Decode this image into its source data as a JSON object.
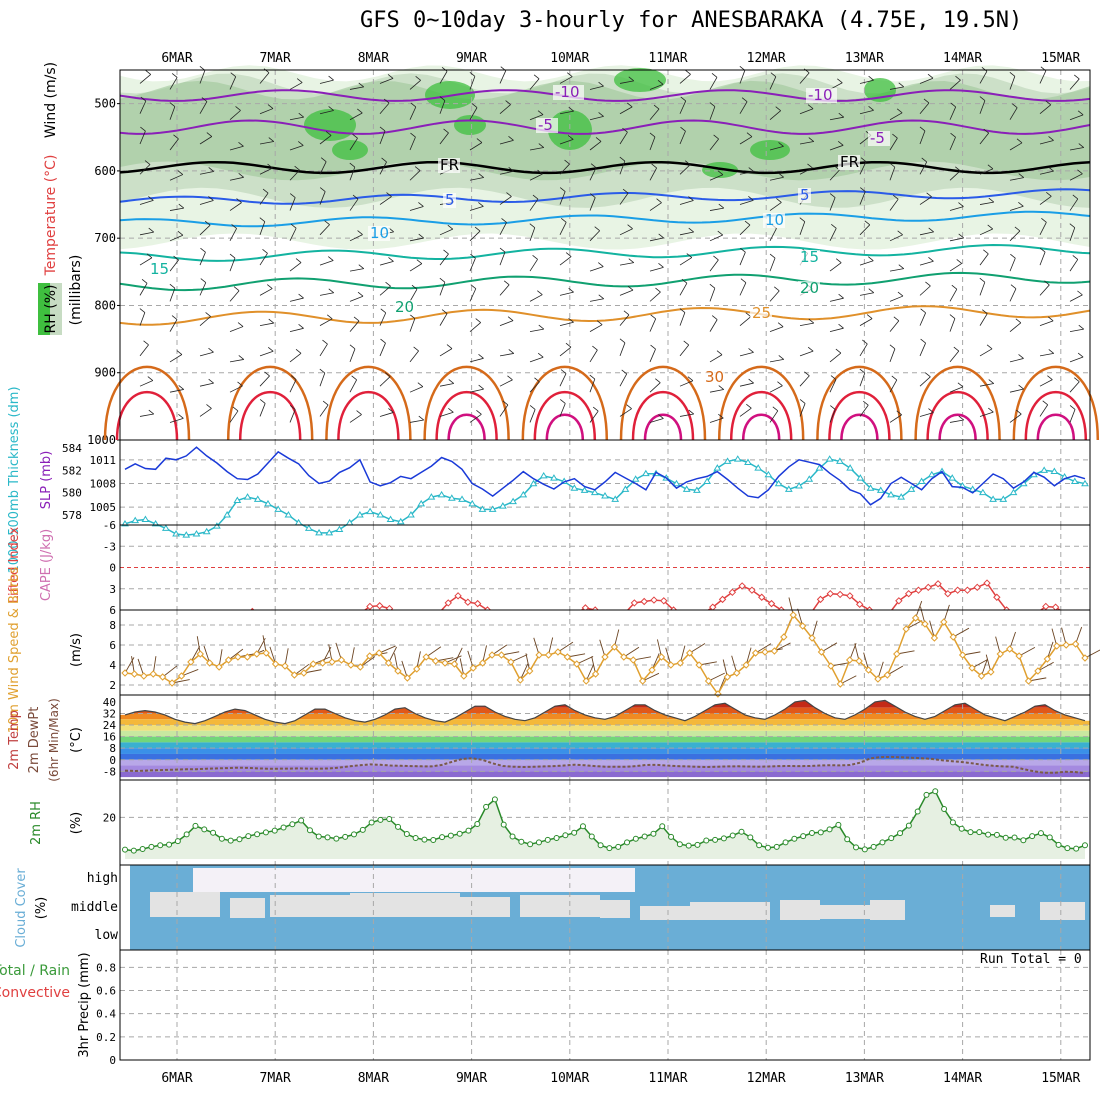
{
  "title": "GFS 0~10day 3-hourly for ANESBARAKA (4.75E, 19.5N)",
  "dates": [
    "6MAR",
    "7MAR",
    "8MAR",
    "9MAR",
    "10MAR",
    "11MAR",
    "12MAR",
    "13MAR",
    "14MAR",
    "15MAR"
  ],
  "colors": {
    "grid": "#a8a8a8",
    "rh_green_light": "#e8f4e4",
    "rh_green_mid": "#c7dcc3",
    "rh_green_dark": "#9fc79a",
    "rh_green_bright": "#3fbf3f",
    "temp_purple": "#8a1fb8",
    "temp_blue": "#2a5be8",
    "temp_skyblue": "#1a9ee6",
    "temp_teal": "#13b3a0",
    "temp_green": "#10a070",
    "temp_orange": "#e0902a",
    "temp_darkorange": "#d56a1a",
    "temp_red": "#e0203a",
    "temp_magenta": "#d0107f",
    "slp_blue": "#1a3ad8",
    "thick_cyan": "#2ab8c8",
    "li_red": "#e04040",
    "wind_orange": "#e0a030",
    "barb_brown": "#6b4422",
    "rh2_green": "#2a8a2a",
    "cloud_blue": "#6aaed6",
    "cloud_white": "#f4f1f7",
    "cloud_gray": "#e3e3e3",
    "dewpt": "#7a5a4a"
  },
  "panels": {
    "upper": {
      "label_wind": "Wind (m/s)",
      "label_temp": "Temperature (°C)",
      "label_rh": "RH (%)",
      "label_unit": "(millibars)",
      "yticks": [
        "500",
        "600",
        "700",
        "800",
        "900",
        "1000"
      ],
      "temp_labels": [
        {
          "text": "-10",
          "color": "temp_purple"
        },
        {
          "text": "-10",
          "color": "temp_purple"
        },
        {
          "text": "-5",
          "color": "temp_purple"
        },
        {
          "text": "-5",
          "color": "temp_purple"
        },
        {
          "text": "FR",
          "color": "black"
        },
        {
          "text": "FR",
          "color": "black"
        },
        {
          "text": "5",
          "color": "temp_blue"
        },
        {
          "text": "5",
          "color": "temp_blue"
        },
        {
          "text": "10",
          "color": "temp_skyblue"
        },
        {
          "text": "10",
          "color": "temp_skyblue"
        },
        {
          "text": "15",
          "color": "temp_teal"
        },
        {
          "text": "15",
          "color": "temp_teal"
        },
        {
          "text": "20",
          "color": "temp_green"
        },
        {
          "text": "20",
          "color": "temp_green"
        },
        {
          "text": "25",
          "color": "temp_orange"
        },
        {
          "text": "30",
          "color": "temp_darkorange"
        }
      ]
    },
    "slp": {
      "label_thick": "1000-500mb Thickness (dm)",
      "label_slp": "SLP (mb)",
      "thick_ticks": [
        "584",
        "582",
        "580",
        "578"
      ],
      "slp_ticks": [
        "1011",
        "1008",
        "1005"
      ],
      "thickness_dm": [
        577.2,
        577.5,
        577.6,
        577.2,
        576.8,
        576.3,
        576.2,
        576.3,
        576.5,
        577.0,
        578.0,
        579.3,
        579.6,
        579.4,
        579.0,
        578.5,
        578.0,
        577.3,
        576.8,
        576.4,
        576.4,
        576.7,
        577.3,
        578.0,
        578.3,
        578.0,
        577.6,
        577.4,
        578.0,
        579.0,
        579.6,
        579.8,
        579.5,
        579.4,
        579.0,
        578.5,
        578.5,
        578.8,
        579.2,
        579.8,
        580.8,
        581.5,
        581.3,
        581.0,
        580.4,
        580.2,
        580.0,
        579.7,
        579.4,
        580.3,
        581.2,
        581.7,
        581.7,
        581.3,
        580.8,
        580.3,
        580.2,
        581.0,
        582.2,
        582.8,
        583.0,
        582.7,
        582.2,
        581.6,
        580.8,
        580.3,
        580.6,
        581.2,
        582.2,
        583.0,
        582.8,
        582.2,
        581.3,
        580.4,
        580.2,
        579.8,
        579.6,
        580.3,
        581.0,
        581.6,
        581.9,
        581.3,
        580.6,
        580.3,
        580.0,
        579.4,
        579.4,
        580.0,
        580.8,
        581.6,
        582.0,
        581.9,
        581.4,
        581.0,
        580.8
      ],
      "slp_mb": [
        1009.8,
        1010.5,
        1009.9,
        1009.8,
        1011.2,
        1011.0,
        1011.5,
        1012.6,
        1011.5,
        1010.6,
        1009.5,
        1008.6,
        1008.5,
        1009.2,
        1010.6,
        1012.0,
        1011.2,
        1010.5,
        1009.0,
        1008.0,
        1008.3,
        1009.4,
        1010.0,
        1011.0,
        1008.2,
        1007.7,
        1008.1,
        1008.9,
        1008.6,
        1009.4,
        1010.2,
        1011.3,
        1010.8,
        1009.8,
        1008.0,
        1007.3,
        1006.4,
        1007.4,
        1008.4,
        1009.5,
        1008.6,
        1007.9,
        1007.3,
        1008.2,
        1008.6,
        1007.6,
        1007.2,
        1008.2,
        1009.4,
        1008.7,
        1008.0,
        1007.2,
        1009.4,
        1008.7,
        1007.4,
        1008.2,
        1008.6,
        1008.9,
        1009.5,
        1008.5,
        1007.4,
        1006.4,
        1006.2,
        1007.2,
        1008.9,
        1010.1,
        1011.0,
        1010.7,
        1010.4,
        1009.3,
        1008.4,
        1007.2,
        1006.7,
        1005.3,
        1006.1,
        1008.0,
        1008.8,
        1008.0,
        1007.2,
        1008.6,
        1009.5,
        1007.6,
        1007.5,
        1006.8,
        1008.0,
        1009.2,
        1008.6,
        1007.4,
        1008.2,
        1009.4,
        1008.8,
        1007.7,
        1008.6,
        1009.0,
        1008.6
      ]
    },
    "li": {
      "label_li": "Lifted Index",
      "label_cape": "CAPE (J/kg)",
      "yticks": [
        "-6",
        "-3",
        "0",
        "3",
        "6"
      ],
      "lifted_index": [
        6.5,
        6.5,
        6.5,
        6.5,
        6.5,
        6.5,
        6.5,
        6.5,
        6.5,
        6.5,
        6.5,
        6.5,
        6.5,
        6.2,
        6.5,
        6.5,
        6.5,
        6.5,
        6.5,
        6.5,
        6.5,
        6.5,
        6.5,
        6.5,
        6.5,
        5.5,
        5.4,
        5.8,
        6.5,
        6.5,
        6.5,
        6.5,
        6.5,
        5.0,
        4.0,
        4.9,
        5.1,
        6.0,
        6.5,
        6.5,
        6.5,
        6.5,
        6.5,
        6.5,
        6.5,
        6.5,
        6.5,
        5.7,
        6.0,
        6.5,
        6.5,
        6.5,
        5.0,
        4.8,
        4.6,
        4.7,
        6.0,
        6.5,
        6.5,
        6.5,
        5.6,
        4.5,
        3.5,
        2.6,
        3.2,
        4.2,
        5.1,
        6.0,
        6.5,
        6.5,
        6.5,
        4.5,
        3.7,
        3.8,
        4.0,
        5.2,
        6.0,
        6.5,
        6.5,
        4.7,
        3.7,
        3.2,
        2.8,
        2.3,
        3.7,
        3.2,
        3.2,
        2.8,
        2.2,
        4.2,
        6.0,
        6.5,
        6.5,
        6.5,
        5.5,
        5.6,
        6.5,
        6.5,
        6.5
      ]
    },
    "wind": {
      "label": "10m Wind Speed & Barbs",
      "unit": "(m/s)",
      "yticks": [
        "8",
        "6",
        "4",
        "2"
      ],
      "speed": [
        3.2,
        3.1,
        2.9,
        3.1,
        2.8,
        2.2,
        2.9,
        4.3,
        5.1,
        4.2,
        3.8,
        4.5,
        4.8,
        4.8,
        5.1,
        5.2,
        4.1,
        3.9,
        3.0,
        3.2,
        4.1,
        4.2,
        4.3,
        4.5,
        4.0,
        3.8,
        4.9,
        5.2,
        4.2,
        3.4,
        2.7,
        3.6,
        4.8,
        4.4,
        4.2,
        4.1,
        2.9,
        3.7,
        4.2,
        5.0,
        5.0,
        4.3,
        2.5,
        3.4,
        5.0,
        5.0,
        5.3,
        4.8,
        4.1,
        2.4,
        3.1,
        4.8,
        5.8,
        4.8,
        4.5,
        2.4,
        3.5,
        4.8,
        4.0,
        4.2,
        5.2,
        4.0,
        2.4,
        1.1,
        2.8,
        3.2,
        4.0,
        5.2,
        5.3,
        5.4,
        6.8,
        9.0,
        7.9,
        6.7,
        5.3,
        3.9,
        2.1,
        4.5,
        4.4,
        3.5,
        2.6,
        3.0,
        5.1,
        7.6,
        8.7,
        8.1,
        6.7,
        8.3,
        6.8,
        5.0,
        3.7,
        2.9,
        3.3,
        5.1,
        5.6,
        4.9,
        2.4,
        3.4,
        4.6,
        5.9,
        6.0,
        6.1,
        4.7
      ]
    },
    "temp": {
      "label1": "2m Temp",
      "label2": "2m DewPt",
      "label3": "(6hr Min/Max)",
      "unit": "(°C)",
      "yticks": [
        "40",
        "32",
        "24",
        "16",
        "8",
        "0",
        "-8"
      ],
      "temperature": [
        31,
        33,
        34,
        33,
        31,
        28,
        26,
        25,
        27,
        30,
        33,
        35,
        34,
        31,
        28,
        26,
        25,
        27,
        31,
        35,
        35,
        32,
        29,
        27,
        26,
        28,
        31,
        35,
        36,
        32,
        29,
        27,
        26,
        29,
        33,
        37,
        37,
        33,
        30,
        28,
        27,
        29,
        33,
        37,
        38,
        34,
        31,
        29,
        28,
        30,
        34,
        38,
        38,
        34,
        31,
        29,
        27,
        30,
        34,
        38,
        39,
        35,
        31,
        29,
        28,
        31,
        35,
        40,
        41,
        36,
        32,
        29,
        28,
        31,
        35,
        40,
        41,
        37,
        33,
        30,
        28,
        30,
        34,
        38,
        39,
        35,
        31,
        29,
        27,
        30,
        33,
        37,
        38,
        34,
        31,
        29,
        27
      ],
      "dewpoint": [
        -7.5,
        -7.8,
        -7.5,
        -7.2,
        -7.0,
        -6.8,
        -6.6,
        -6.5,
        -6.2,
        -6.0,
        -5.8,
        -5.5,
        -5.6,
        -6.0,
        -6.2,
        -6.2,
        -6.1,
        -6.0,
        -6.1,
        -6.2,
        -6.0,
        -5.4,
        -4.5,
        -3.8,
        -3.2,
        -3.5,
        -4.0,
        -4.2,
        -4.4,
        -4.5,
        -4.6,
        -3.6,
        -1.5,
        0.5,
        1.0,
        0.0,
        -2.5,
        -4.3,
        -4.8,
        -5.0,
        -4.9,
        -4.6,
        -4.4,
        -4.0,
        -3.4,
        -3.8,
        -4.4,
        -4.8,
        -4.9,
        -4.9,
        -4.4,
        -3.6,
        -3.5,
        -4.0,
        -4.4,
        -4.6,
        -4.9,
        -5.0,
        -4.8,
        -4.6,
        -4.5,
        -4.7,
        -4.8,
        -4.7,
        -4.4,
        -4.3,
        -4.4,
        -4.3,
        -4.0,
        -3.8,
        -3.9,
        -3.6,
        -2.0,
        1.0,
        1.8,
        2.0,
        1.7,
        1.4,
        1.1,
        0.6,
        -0.4,
        -1.0,
        -1.6,
        -2.5,
        -3.5,
        -4.2,
        -4.6,
        -4.8,
        -6.5,
        -8.0,
        -9.0,
        -9.0,
        -8.3,
        -8.5,
        -9.2
      ]
    },
    "rh": {
      "label": "2m RH",
      "unit": "(%)",
      "yticks": [
        "20"
      ],
      "rh_percent": [
        4.5,
        4.0,
        4.8,
        5.8,
        6.6,
        6.9,
        8.6,
        11.8,
        15.9,
        14.2,
        12.6,
        9.7,
        8.8,
        9.5,
        11.0,
        11.9,
        12.8,
        13.6,
        15.1,
        16.7,
        18.5,
        13.8,
        10.8,
        10.4,
        9.8,
        10.6,
        11.8,
        14.0,
        17.5,
        18.8,
        19.2,
        15.4,
        12.0,
        10.1,
        9.3,
        9.1,
        10.5,
        11.2,
        12.1,
        13.6,
        16.8,
        25.0,
        28.6,
        16.5,
        10.8,
        8.3,
        7.1,
        8.0,
        9.2,
        10.1,
        11.4,
        12.6,
        15.7,
        10.8,
        6.6,
        5.2,
        5.8,
        8.0,
        9.7,
        10.8,
        12.1,
        15.7,
        10.6,
        7.1,
        6.4,
        6.8,
        8.9,
        9.2,
        9.9,
        11.3,
        13.1,
        10.4,
        6.6,
        5.4,
        5.8,
        8.0,
        9.7,
        11.0,
        12.5,
        12.8,
        14.2,
        16.4,
        9.5,
        5.6,
        4.6,
        5.8,
        8.0,
        10.0,
        12.4,
        16.0,
        22.8,
        30.8,
        32.5,
        24.0,
        17.6,
        14.5,
        12.9,
        12.9,
        11.7,
        11.6,
        10.2,
        10.3,
        9.0,
        11.0,
        12.4,
        10.4,
        6.8,
        5.2,
        5.0,
        6.6
      ]
    },
    "cloud": {
      "label": "Cloud Cover",
      "unit": "(%)",
      "levels": [
        "high",
        "middle",
        "low"
      ]
    },
    "precip": {
      "label_total": "Total / Rain",
      "label_conv": "Convective",
      "label_axis": "3hr Precip (mm)",
      "yticks": [
        "0.8",
        "0.6",
        "0.4",
        "0.2",
        "0"
      ],
      "run_total_label": "Run Total = 0"
    }
  }
}
